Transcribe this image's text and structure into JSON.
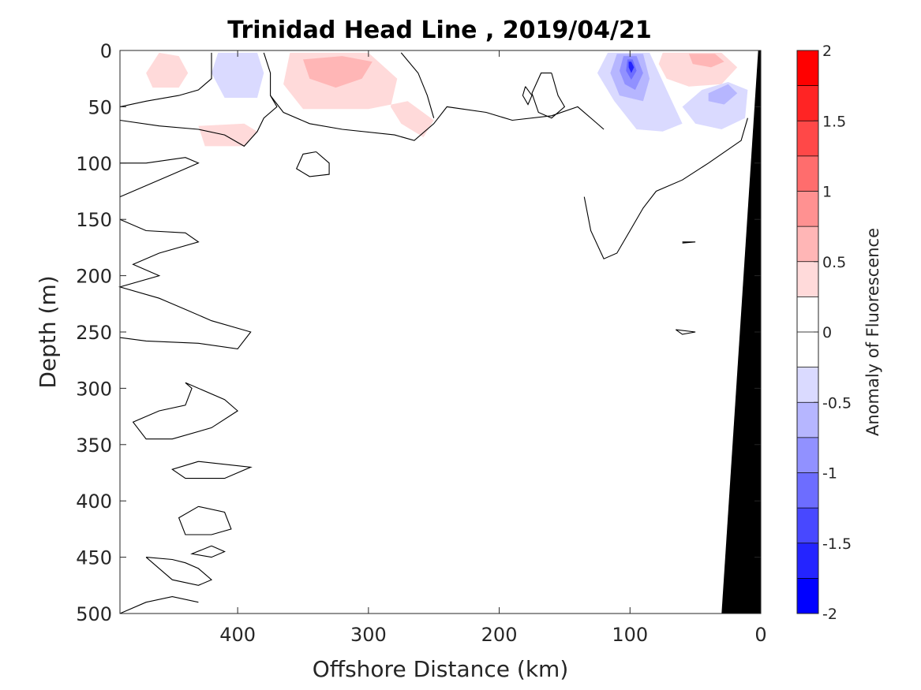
{
  "chart_data": {
    "type": "contour",
    "title": "Trinidad Head Line , 2019/04/21",
    "xlabel": "Offshore Distance (km)",
    "ylabel": "Depth (m)",
    "xlim": [
      490,
      0
    ],
    "ylim": [
      0,
      500
    ],
    "x_reversed": true,
    "y_reversed": true,
    "xticks": [
      400,
      300,
      200,
      100,
      0
    ],
    "yticks": [
      0,
      50,
      100,
      150,
      200,
      250,
      300,
      350,
      400,
      450,
      500
    ],
    "colorbar": {
      "label": "Anomaly of Fluorescence",
      "range": [
        -2,
        2
      ],
      "step": 0.25,
      "ticks": [
        "2",
        "1.5",
        "1",
        "0.5",
        "0",
        "-0.5",
        "-1",
        "-1.5",
        "-2"
      ],
      "colors_top_to_bottom": [
        "#ff0000",
        "#ff2424",
        "#ff4848",
        "#ff6d6d",
        "#ff9191",
        "#ffb6b6",
        "#ffdada",
        "#ffffff",
        "#ffffff",
        "#dadaff",
        "#b6b6ff",
        "#9191ff",
        "#6d6dff",
        "#4848ff",
        "#2424ff",
        "#0000ff"
      ]
    },
    "anomaly_patches": [
      {
        "level": 0.375,
        "polygon": [
          [
            460,
            2
          ],
          [
            445,
            5
          ],
          [
            438,
            20
          ],
          [
            445,
            33
          ],
          [
            465,
            33
          ],
          [
            470,
            20
          ]
        ]
      },
      {
        "level": -0.375,
        "polygon": [
          [
            415,
            2
          ],
          [
            385,
            2
          ],
          [
            380,
            20
          ],
          [
            385,
            42
          ],
          [
            410,
            42
          ],
          [
            420,
            20
          ]
        ]
      },
      {
        "level": 0.375,
        "polygon": [
          [
            360,
            2
          ],
          [
            300,
            2
          ],
          [
            278,
            25
          ],
          [
            283,
            50
          ],
          [
            275,
            65
          ],
          [
            258,
            77
          ],
          [
            250,
            62
          ],
          [
            270,
            45
          ],
          [
            300,
            52
          ],
          [
            350,
            52
          ],
          [
            365,
            30
          ]
        ]
      },
      {
        "level": 0.625,
        "polygon": [
          [
            350,
            8
          ],
          [
            320,
            5
          ],
          [
            297,
            10
          ],
          [
            305,
            25
          ],
          [
            325,
            33
          ],
          [
            345,
            25
          ]
        ]
      },
      {
        "level": 0.375,
        "polygon": [
          [
            430,
            67
          ],
          [
            395,
            65
          ],
          [
            385,
            72
          ],
          [
            395,
            85
          ],
          [
            425,
            85
          ]
        ]
      },
      {
        "level": -0.375,
        "polygon": [
          [
            117,
            2
          ],
          [
            85,
            2
          ],
          [
            72,
            35
          ],
          [
            60,
            65
          ],
          [
            75,
            72
          ],
          [
            95,
            70
          ],
          [
            112,
            45
          ],
          [
            125,
            20
          ]
        ]
      },
      {
        "level": -0.625,
        "polygon": [
          [
            110,
            3
          ],
          [
            90,
            3
          ],
          [
            85,
            25
          ],
          [
            90,
            45
          ],
          [
            108,
            40
          ],
          [
            115,
            20
          ]
        ]
      },
      {
        "level": -0.875,
        "polygon": [
          [
            105,
            5
          ],
          [
            95,
            5
          ],
          [
            90,
            20
          ],
          [
            96,
            35
          ],
          [
            104,
            30
          ],
          [
            108,
            18
          ]
        ]
      },
      {
        "level": -1.125,
        "polygon": [
          [
            102,
            8
          ],
          [
            98,
            8
          ],
          [
            95,
            18
          ],
          [
            99,
            26
          ],
          [
            103,
            18
          ]
        ]
      },
      {
        "level": -1.625,
        "polygon": [
          [
            101,
            10
          ],
          [
            99,
            10
          ],
          [
            97,
            15
          ],
          [
            99,
            20
          ],
          [
            101,
            15
          ]
        ]
      },
      {
        "level": 0.375,
        "polygon": [
          [
            75,
            2
          ],
          [
            30,
            2
          ],
          [
            18,
            15
          ],
          [
            30,
            30
          ],
          [
            55,
            32
          ],
          [
            72,
            25
          ],
          [
            78,
            12
          ]
        ]
      },
      {
        "level": 0.625,
        "polygon": [
          [
            55,
            3
          ],
          [
            35,
            3
          ],
          [
            28,
            10
          ],
          [
            38,
            15
          ],
          [
            52,
            12
          ]
        ]
      },
      {
        "level": -0.375,
        "polygon": [
          [
            60,
            50
          ],
          [
            45,
            35
          ],
          [
            25,
            28
          ],
          [
            10,
            35
          ],
          [
            12,
            60
          ],
          [
            30,
            70
          ],
          [
            50,
            65
          ]
        ]
      },
      {
        "level": -0.625,
        "polygon": [
          [
            40,
            38
          ],
          [
            25,
            30
          ],
          [
            18,
            38
          ],
          [
            28,
            48
          ],
          [
            40,
            45
          ]
        ]
      }
    ],
    "zero_contours": [
      [
        [
          490,
          50
        ],
        [
          470,
          45
        ],
        [
          445,
          40
        ],
        [
          430,
          35
        ],
        [
          420,
          25
        ],
        [
          420,
          2
        ]
      ],
      [
        [
          380,
          2
        ],
        [
          375,
          20
        ],
        [
          375,
          40
        ],
        [
          365,
          55
        ],
        [
          345,
          65
        ],
        [
          320,
          70
        ],
        [
          280,
          75
        ],
        [
          265,
          80
        ],
        [
          250,
          65
        ],
        [
          240,
          50
        ],
        [
          210,
          55
        ],
        [
          190,
          62
        ],
        [
          160,
          58
        ],
        [
          140,
          50
        ],
        [
          128,
          62
        ],
        [
          120,
          70
        ]
      ],
      [
        [
          490,
          62
        ],
        [
          460,
          67
        ],
        [
          430,
          70
        ],
        [
          410,
          75
        ],
        [
          395,
          85
        ],
        [
          385,
          72
        ],
        [
          380,
          60
        ],
        [
          370,
          50
        ],
        [
          375,
          40
        ]
      ],
      [
        [
          275,
          2
        ],
        [
          262,
          20
        ],
        [
          255,
          40
        ],
        [
          250,
          60
        ]
      ],
      [
        [
          340,
          90
        ],
        [
          330,
          100
        ],
        [
          330,
          110
        ],
        [
          345,
          112
        ],
        [
          355,
          105
        ],
        [
          350,
          92
        ],
        [
          340,
          90
        ]
      ],
      [
        [
          160,
          20
        ],
        [
          155,
          40
        ],
        [
          150,
          50
        ],
        [
          160,
          60
        ],
        [
          170,
          55
        ],
        [
          175,
          38
        ],
        [
          168,
          20
        ],
        [
          160,
          20
        ]
      ],
      [
        [
          180,
          32
        ],
        [
          175,
          40
        ],
        [
          178,
          48
        ],
        [
          182,
          40
        ],
        [
          180,
          32
        ]
      ],
      [
        [
          135,
          130
        ],
        [
          130,
          160
        ],
        [
          120,
          185
        ],
        [
          110,
          180
        ],
        [
          100,
          160
        ],
        [
          90,
          140
        ],
        [
          80,
          125
        ],
        [
          60,
          115
        ],
        [
          40,
          100
        ],
        [
          15,
          80
        ],
        [
          10,
          60
        ]
      ],
      [
        [
          490,
          100
        ],
        [
          470,
          100
        ],
        [
          440,
          95
        ],
        [
          430,
          100
        ],
        [
          450,
          110
        ],
        [
          490,
          130
        ]
      ],
      [
        [
          490,
          150
        ],
        [
          470,
          160
        ],
        [
          440,
          162
        ],
        [
          430,
          170
        ],
        [
          460,
          180
        ],
        [
          480,
          190
        ],
        [
          460,
          200
        ],
        [
          490,
          210
        ],
        [
          460,
          220
        ],
        [
          440,
          230
        ],
        [
          420,
          240
        ],
        [
          390,
          250
        ],
        [
          400,
          265
        ],
        [
          430,
          260
        ],
        [
          470,
          258
        ],
        [
          490,
          255
        ]
      ],
      [
        [
          440,
          295
        ],
        [
          410,
          310
        ],
        [
          400,
          320
        ],
        [
          420,
          335
        ],
        [
          450,
          345
        ],
        [
          470,
          345
        ],
        [
          480,
          330
        ],
        [
          460,
          320
        ],
        [
          440,
          315
        ],
        [
          435,
          300
        ],
        [
          440,
          295
        ]
      ],
      [
        [
          430,
          365
        ],
        [
          390,
          370
        ],
        [
          410,
          380
        ],
        [
          440,
          380
        ],
        [
          450,
          372
        ],
        [
          430,
          365
        ]
      ],
      [
        [
          430,
          405
        ],
        [
          410,
          410
        ],
        [
          405,
          425
        ],
        [
          420,
          430
        ],
        [
          440,
          430
        ],
        [
          445,
          415
        ],
        [
          430,
          405
        ]
      ],
      [
        [
          420,
          440
        ],
        [
          410,
          445
        ],
        [
          420,
          450
        ],
        [
          435,
          447
        ],
        [
          420,
          440
        ]
      ],
      [
        [
          470,
          450
        ],
        [
          450,
          452
        ],
        [
          440,
          455
        ],
        [
          430,
          460
        ],
        [
          420,
          470
        ],
        [
          430,
          475
        ],
        [
          450,
          470
        ],
        [
          460,
          460
        ],
        [
          470,
          450
        ]
      ],
      [
        [
          60,
          170
        ],
        [
          50,
          170
        ],
        [
          60,
          171
        ]
      ],
      [
        [
          65,
          248
        ],
        [
          50,
          250
        ],
        [
          60,
          252
        ],
        [
          65,
          248
        ]
      ],
      [
        [
          490,
          500
        ],
        [
          470,
          490
        ],
        [
          450,
          485
        ],
        [
          430,
          490
        ]
      ]
    ],
    "land_mask": [
      [
        30,
        500
      ],
      [
        2,
        0
      ],
      [
        0,
        0
      ],
      [
        0,
        500
      ]
    ]
  }
}
